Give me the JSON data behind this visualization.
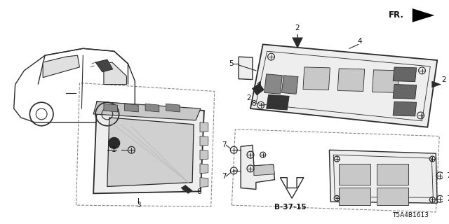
{
  "bg_color": "#ffffff",
  "diagram_id": "T5A4B1613",
  "line_color": "#2a2a2a",
  "dashed_color": "#888888",
  "text_color": "#111111",
  "gray_fill": "#c8c8c8",
  "light_fill": "#eeeeee",
  "dark_fill": "#555555",
  "fr_text": "FR.",
  "ref_text": "B-37-15",
  "part_numbers": [
    "1",
    "2",
    "3",
    "4",
    "5",
    "6",
    "7",
    "8"
  ]
}
